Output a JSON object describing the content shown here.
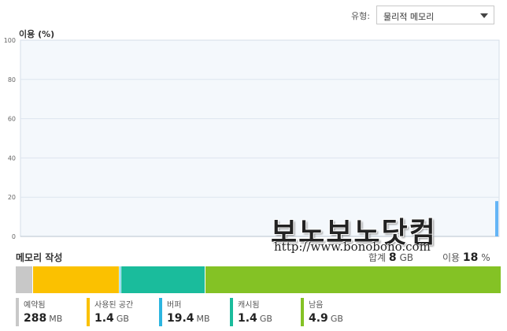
{
  "header": {
    "type_label": "유형:",
    "type_value": "물리적 메모리"
  },
  "chart": {
    "title": "이용 (%)",
    "y_ticks": [
      "100",
      "80",
      "60",
      "40",
      "20",
      "0"
    ]
  },
  "chart_data": {
    "type": "area",
    "title": "이용 (%)",
    "xlabel": "",
    "ylabel": "이용 (%)",
    "ylim": [
      0,
      100
    ],
    "grid": true,
    "y_ticks": [
      0,
      20,
      40,
      60,
      80,
      100
    ],
    "series": [
      {
        "values": [
          18
        ],
        "color": "#64b5f6"
      }
    ]
  },
  "watermark": {
    "text": "보노보노닷컴",
    "url": "http://www.bonobono.com"
  },
  "composition": {
    "title": "메모리 작성",
    "total_label": "합계",
    "total_value": "8",
    "total_unit": "GB",
    "usage_label": "이용",
    "usage_value": "18",
    "usage_unit": "%",
    "segments": [
      {
        "name": "예약됨",
        "value": "288",
        "unit": "MB",
        "color": "#c8c8c8",
        "fraction": 0.036
      },
      {
        "name": "사용된 공간",
        "value": "1.4",
        "unit": "GB",
        "color": "#fbc100",
        "fraction": 0.178
      },
      {
        "name": "버퍼",
        "value": "19.4",
        "unit": "MB",
        "color": "#2cb5e0",
        "fraction": 0.003
      },
      {
        "name": "캐시됨",
        "value": "1.4",
        "unit": "GB",
        "color": "#1abc9c",
        "fraction": 0.175
      },
      {
        "name": "남음",
        "value": "4.9",
        "unit": "GB",
        "color": "#84c225",
        "fraction": 0.608
      }
    ]
  }
}
